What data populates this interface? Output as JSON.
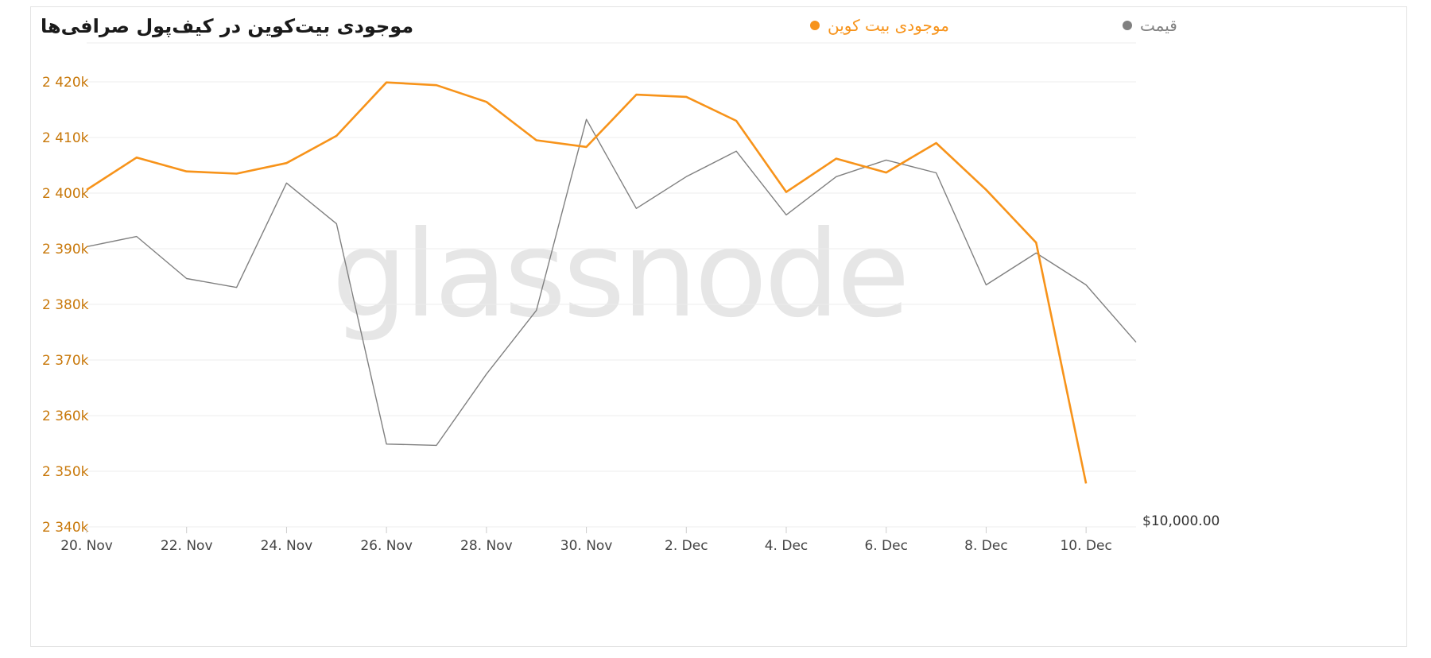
{
  "chart_data": {
    "type": "line",
    "title": "موجودی بیت‌کوین در کیف‌پول صرافی‌ها",
    "watermark": "glassnode",
    "legend": [
      {
        "label": "قیمت",
        "color": "#808080"
      },
      {
        "label": "موجودی بیت کوین",
        "color": "#f7931a"
      }
    ],
    "x_ticks": [
      "20. Nov",
      "22. Nov",
      "24. Nov",
      "26. Nov",
      "28. Nov",
      "30. Nov",
      "2. Dec",
      "4. Dec",
      "6. Dec",
      "8. Dec",
      "10. Dec"
    ],
    "y_left_ticks": [
      "2 420k",
      "2 410k",
      "2 400k",
      "2 390k",
      "2 380k",
      "2 370k",
      "2 360k",
      "2 350k",
      "2 340k"
    ],
    "y_right_tick": "$10,000.00",
    "ylim_left": [
      2340000,
      2427000
    ],
    "x": [
      "2020-11-20",
      "2020-11-21",
      "2020-11-22",
      "2020-11-23",
      "2020-11-24",
      "2020-11-25",
      "2020-11-26",
      "2020-11-27",
      "2020-11-28",
      "2020-11-29",
      "2020-11-30",
      "2020-12-01",
      "2020-12-02",
      "2020-12-03",
      "2020-12-04",
      "2020-12-05",
      "2020-12-06",
      "2020-12-07",
      "2020-12-08",
      "2020-12-09",
      "2020-12-10",
      "2020-12-11"
    ],
    "series": [
      {
        "name": "موجودی بیت کوین",
        "color": "#f7931a",
        "axis": "left",
        "values": [
          2400600,
          2406400,
          2403900,
          2403500,
          2405400,
          2410300,
          2419900,
          2419400,
          2416400,
          2409500,
          2408300,
          2417700,
          2417300,
          2413000,
          2400200,
          2406200,
          2403700,
          2409000,
          2400600,
          2391100,
          2347800,
          null
        ]
      },
      {
        "name": "قیمت",
        "color": "#808080",
        "axis": "right",
        "values": [
          18700,
          18780,
          18450,
          18380,
          19200,
          18880,
          17150,
          17140,
          17700,
          18200,
          19700,
          19000,
          19250,
          19450,
          18950,
          19250,
          19380,
          19280,
          18400,
          18650,
          18400,
          17950
        ]
      }
    ],
    "price_display_range": [
      16500,
      20300
    ]
  }
}
